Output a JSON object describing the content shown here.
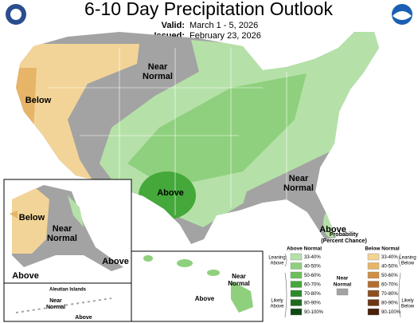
{
  "header": {
    "title": "6-10 Day Precipitation Outlook",
    "valid_label": "Valid:",
    "valid": "March 1 - 5, 2026",
    "issued_label": "Issued:",
    "issued": "February 23, 2026"
  },
  "conus": {
    "near_north": [
      "Near",
      "Normal"
    ],
    "below_west": "Below",
    "above_texas": "Above",
    "near_southeast": [
      "Near",
      "Normal"
    ],
    "above_florida": "Above"
  },
  "alaska": {
    "below": "Below",
    "near": [
      "Near",
      "Normal"
    ],
    "above_panhandle": "Above",
    "above_southwest": "Above"
  },
  "hawaii": {
    "near": [
      "Near",
      "Normal"
    ],
    "above": "Above"
  },
  "aleutians": {
    "title": "Aleutian Islands",
    "near": [
      "Near",
      "Normal"
    ],
    "above": "Above"
  },
  "legend": {
    "title": [
      "Probability",
      "(Percent Chance)"
    ],
    "above_header": "Above Normal",
    "below_header": "Below Normal",
    "leaning_above": [
      "Leaning",
      "Above"
    ],
    "likely_above": [
      "Likely",
      "Above"
    ],
    "near": [
      "Near",
      "Normal"
    ],
    "leaning_below": [
      "Leaning",
      "Below"
    ],
    "likely_below": [
      "Likely",
      "Below"
    ],
    "near_color": "#a3a3a3",
    "above_bins": [
      {
        "label": "33-40%",
        "color": "#b5e1a8"
      },
      {
        "label": "40-50%",
        "color": "#8fd07e"
      },
      {
        "label": "50-60%",
        "color": "#6cbf59"
      },
      {
        "label": "60-70%",
        "color": "#45a83a"
      },
      {
        "label": "70-80%",
        "color": "#2c8a2a"
      },
      {
        "label": "80-90%",
        "color": "#1d6a1d"
      },
      {
        "label": "90-100%",
        "color": "#0d4a12"
      }
    ],
    "below_bins": [
      {
        "label": "33-40%",
        "color": "#f3d498"
      },
      {
        "label": "40-50%",
        "color": "#e6b568"
      },
      {
        "label": "50-60%",
        "color": "#d08e45"
      },
      {
        "label": "60-70%",
        "color": "#b36d2e"
      },
      {
        "label": "70-80%",
        "color": "#8e4f1f"
      },
      {
        "label": "80-90%",
        "color": "#6b3614"
      },
      {
        "label": "90-100%",
        "color": "#4a200a"
      }
    ]
  }
}
